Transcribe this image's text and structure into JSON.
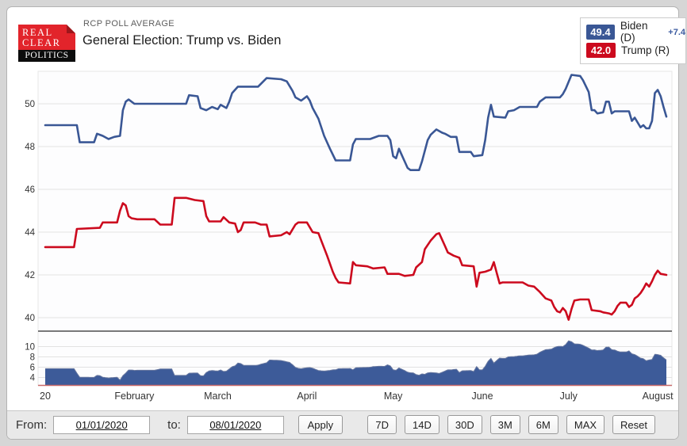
{
  "header": {
    "logo": {
      "line1": "REAL",
      "line2": "CLEAR",
      "line3": "POLITICS"
    },
    "kicker": "RCP POLL AVERAGE",
    "title": "General Election: Trump vs. Biden"
  },
  "legend": {
    "items": [
      {
        "value": "49.4",
        "label": "Biden (D)",
        "delta": "+7.4",
        "color": "#3a5795"
      },
      {
        "value": "42.0",
        "label": "Trump (R)",
        "delta": "",
        "color": "#cc0a1e"
      }
    ]
  },
  "chart_data": {
    "type": "line",
    "title": "General Election: Trump vs. Biden",
    "x_unit": "days since 2020-01-01",
    "x_domain": [
      0,
      216
    ],
    "x_ticks": [
      {
        "day": 0,
        "label": "20"
      },
      {
        "day": 31,
        "label": "February"
      },
      {
        "day": 60,
        "label": "March"
      },
      {
        "day": 91,
        "label": "April"
      },
      {
        "day": 121,
        "label": "May"
      },
      {
        "day": 152,
        "label": "June"
      },
      {
        "day": 182,
        "label": "July"
      },
      {
        "day": 213,
        "label": "August"
      }
    ],
    "main_panel": {
      "ylim": [
        39.4,
        51.5
      ],
      "yticks": [
        50,
        48,
        46,
        44,
        42,
        40
      ],
      "grid": true
    },
    "spread_panel": {
      "ylim": [
        2.4,
        12.2
      ],
      "yticks": [
        10,
        8,
        6,
        4
      ],
      "fill": "#3d5b99",
      "edge": "#67779f",
      "baseline_color": "#c96a6a",
      "note": "area = Biden minus Trump spread"
    },
    "series": [
      {
        "name": "Biden (D)",
        "color": "#3a5795",
        "final": 49.4,
        "points": [
          [
            0,
            49.0
          ],
          [
            11,
            49.0
          ],
          [
            12,
            48.2
          ],
          [
            17,
            48.2
          ],
          [
            18,
            48.6
          ],
          [
            20,
            48.5
          ],
          [
            22,
            48.35
          ],
          [
            24,
            48.45
          ],
          [
            26,
            48.5
          ],
          [
            27,
            49.7
          ],
          [
            28,
            50.1
          ],
          [
            29,
            50.2
          ],
          [
            31,
            50.0
          ],
          [
            49,
            50.0
          ],
          [
            50,
            50.4
          ],
          [
            53,
            50.35
          ],
          [
            54,
            49.8
          ],
          [
            56,
            49.7
          ],
          [
            58,
            49.85
          ],
          [
            60,
            49.75
          ],
          [
            61,
            49.95
          ],
          [
            63,
            49.8
          ],
          [
            64,
            50.1
          ],
          [
            65,
            50.5
          ],
          [
            67,
            50.8
          ],
          [
            74,
            50.8
          ],
          [
            77,
            51.2
          ],
          [
            82,
            51.15
          ],
          [
            84,
            51.05
          ],
          [
            86,
            50.6
          ],
          [
            87,
            50.3
          ],
          [
            89,
            50.15
          ],
          [
            91,
            50.35
          ],
          [
            92,
            50.15
          ],
          [
            93,
            49.8
          ],
          [
            95,
            49.3
          ],
          [
            97,
            48.5
          ],
          [
            99,
            47.9
          ],
          [
            101,
            47.35
          ],
          [
            106,
            47.35
          ],
          [
            107,
            48.1
          ],
          [
            108,
            48.35
          ],
          [
            113,
            48.35
          ],
          [
            116,
            48.5
          ],
          [
            119,
            48.5
          ],
          [
            120,
            48.3
          ],
          [
            121,
            47.55
          ],
          [
            122,
            47.45
          ],
          [
            123,
            47.9
          ],
          [
            124,
            47.6
          ],
          [
            126,
            47.0
          ],
          [
            127,
            46.9
          ],
          [
            130,
            46.9
          ],
          [
            131,
            47.3
          ],
          [
            133,
            48.3
          ],
          [
            134,
            48.55
          ],
          [
            136,
            48.8
          ],
          [
            138,
            48.65
          ],
          [
            139,
            48.6
          ],
          [
            141,
            48.45
          ],
          [
            143,
            48.45
          ],
          [
            144,
            47.75
          ],
          [
            148,
            47.75
          ],
          [
            149,
            47.55
          ],
          [
            152,
            47.6
          ],
          [
            153,
            48.3
          ],
          [
            154,
            49.35
          ],
          [
            155,
            49.95
          ],
          [
            156,
            49.4
          ],
          [
            160,
            49.35
          ],
          [
            161,
            49.65
          ],
          [
            163,
            49.7
          ],
          [
            165,
            49.85
          ],
          [
            171,
            49.85
          ],
          [
            172,
            50.1
          ],
          [
            174,
            50.3
          ],
          [
            179,
            50.3
          ],
          [
            180,
            50.45
          ],
          [
            181,
            50.7
          ],
          [
            183,
            51.35
          ],
          [
            186,
            51.3
          ],
          [
            187,
            51.1
          ],
          [
            189,
            50.55
          ],
          [
            190,
            49.7
          ],
          [
            191,
            49.7
          ],
          [
            192,
            49.55
          ],
          [
            194,
            49.6
          ],
          [
            195,
            50.1
          ],
          [
            196,
            50.1
          ],
          [
            197,
            49.55
          ],
          [
            198,
            49.65
          ],
          [
            203,
            49.65
          ],
          [
            204,
            49.2
          ],
          [
            205,
            49.35
          ],
          [
            207,
            48.9
          ],
          [
            208,
            49.0
          ],
          [
            209,
            48.85
          ],
          [
            210,
            48.85
          ],
          [
            211,
            49.2
          ],
          [
            212,
            50.5
          ],
          [
            213,
            50.65
          ],
          [
            214,
            50.35
          ],
          [
            215,
            49.85
          ],
          [
            216,
            49.4
          ]
        ]
      },
      {
        "name": "Trump (R)",
        "color": "#cc0a1e",
        "final": 42.0,
        "points": [
          [
            0,
            43.3
          ],
          [
            10,
            43.3
          ],
          [
            11,
            44.15
          ],
          [
            19,
            44.2
          ],
          [
            20,
            44.45
          ],
          [
            25,
            44.45
          ],
          [
            26,
            45.0
          ],
          [
            27,
            45.35
          ],
          [
            28,
            45.25
          ],
          [
            29,
            44.75
          ],
          [
            30,
            44.65
          ],
          [
            32,
            44.6
          ],
          [
            38,
            44.6
          ],
          [
            40,
            44.35
          ],
          [
            44,
            44.35
          ],
          [
            45,
            45.6
          ],
          [
            49,
            45.6
          ],
          [
            52,
            45.5
          ],
          [
            55,
            45.45
          ],
          [
            56,
            44.75
          ],
          [
            57,
            44.5
          ],
          [
            61,
            44.5
          ],
          [
            62,
            44.7
          ],
          [
            64,
            44.45
          ],
          [
            66,
            44.4
          ],
          [
            67,
            44.0
          ],
          [
            68,
            44.1
          ],
          [
            69,
            44.45
          ],
          [
            73,
            44.45
          ],
          [
            75,
            44.35
          ],
          [
            77,
            44.35
          ],
          [
            78,
            43.8
          ],
          [
            82,
            43.85
          ],
          [
            84,
            44.0
          ],
          [
            85,
            43.9
          ],
          [
            87,
            44.35
          ],
          [
            88,
            44.45
          ],
          [
            91,
            44.45
          ],
          [
            93,
            44.0
          ],
          [
            95,
            43.95
          ],
          [
            96,
            43.6
          ],
          [
            98,
            42.9
          ],
          [
            100,
            42.15
          ],
          [
            101,
            41.85
          ],
          [
            102,
            41.65
          ],
          [
            106,
            41.6
          ],
          [
            107,
            42.6
          ],
          [
            108,
            42.45
          ],
          [
            112,
            42.4
          ],
          [
            114,
            42.3
          ],
          [
            118,
            42.35
          ],
          [
            119,
            42.05
          ],
          [
            123,
            42.05
          ],
          [
            125,
            41.95
          ],
          [
            128,
            42.0
          ],
          [
            129,
            42.35
          ],
          [
            131,
            42.6
          ],
          [
            132,
            43.2
          ],
          [
            134,
            43.6
          ],
          [
            136,
            43.9
          ],
          [
            137,
            43.95
          ],
          [
            139,
            43.35
          ],
          [
            140,
            43.05
          ],
          [
            142,
            42.9
          ],
          [
            144,
            42.8
          ],
          [
            145,
            42.45
          ],
          [
            149,
            42.4
          ],
          [
            150,
            41.45
          ],
          [
            151,
            42.1
          ],
          [
            153,
            42.15
          ],
          [
            155,
            42.25
          ],
          [
            156,
            42.6
          ],
          [
            157,
            42.1
          ],
          [
            158,
            41.6
          ],
          [
            159,
            41.65
          ],
          [
            166,
            41.65
          ],
          [
            168,
            41.5
          ],
          [
            170,
            41.45
          ],
          [
            172,
            41.2
          ],
          [
            174,
            40.9
          ],
          [
            176,
            40.8
          ],
          [
            177,
            40.5
          ],
          [
            178,
            40.3
          ],
          [
            179,
            40.25
          ],
          [
            180,
            40.45
          ],
          [
            181,
            40.3
          ],
          [
            182,
            39.9
          ],
          [
            183,
            40.4
          ],
          [
            184,
            40.8
          ],
          [
            186,
            40.85
          ],
          [
            189,
            40.85
          ],
          [
            190,
            40.35
          ],
          [
            193,
            40.3
          ],
          [
            194,
            40.25
          ],
          [
            196,
            40.2
          ],
          [
            197,
            40.15
          ],
          [
            198,
            40.3
          ],
          [
            199,
            40.55
          ],
          [
            200,
            40.7
          ],
          [
            202,
            40.7
          ],
          [
            203,
            40.5
          ],
          [
            204,
            40.6
          ],
          [
            205,
            40.9
          ],
          [
            206,
            41.0
          ],
          [
            207,
            41.15
          ],
          [
            208,
            41.35
          ],
          [
            209,
            41.6
          ],
          [
            210,
            41.45
          ],
          [
            211,
            41.7
          ],
          [
            212,
            42.0
          ],
          [
            213,
            42.2
          ],
          [
            214,
            42.05
          ],
          [
            216,
            42.0
          ]
        ]
      }
    ]
  },
  "controls": {
    "from_label": "From:",
    "from_value": "01/01/2020",
    "to_label": "to:",
    "to_value": "08/01/2020",
    "apply_label": "Apply",
    "range_buttons": [
      "7D",
      "14D",
      "30D",
      "3M",
      "6M",
      "MAX",
      "Reset"
    ]
  }
}
